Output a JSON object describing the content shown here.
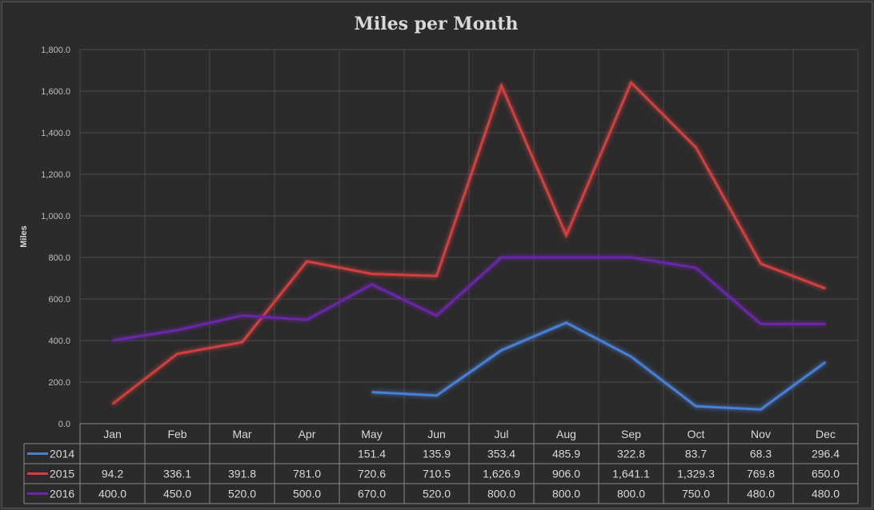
{
  "chart_data": {
    "type": "line",
    "title": "Miles per Month",
    "xlabel": "",
    "ylabel": "Miles",
    "ylim": [
      0,
      1800
    ],
    "yticks": [
      "0.0",
      "200.0",
      "400.0",
      "600.0",
      "800.0",
      "1,000.0",
      "1,200.0",
      "1,400.0",
      "1,600.0",
      "1,800.0"
    ],
    "grid": true,
    "legend": "data-table",
    "categories": [
      "Jan",
      "Feb",
      "Mar",
      "Apr",
      "May",
      "Jun",
      "Jul",
      "Aug",
      "Sep",
      "Oct",
      "Nov",
      "Dec"
    ],
    "series": [
      {
        "name": "2014",
        "color": "#4a7fd4",
        "values": [
          null,
          null,
          null,
          null,
          151.4,
          135.9,
          353.4,
          485.9,
          322.8,
          83.7,
          68.3,
          296.4
        ],
        "labels": [
          "",
          "",
          "",
          "",
          "151.4",
          "135.9",
          "353.4",
          "485.9",
          "322.8",
          "83.7",
          "68.3",
          "296.4"
        ]
      },
      {
        "name": "2015",
        "color": "#d04040",
        "values": [
          94.2,
          336.1,
          391.8,
          781.0,
          720.6,
          710.5,
          1626.9,
          906.0,
          1641.1,
          1329.3,
          769.8,
          650.0
        ],
        "labels": [
          "94.2",
          "336.1",
          "391.8",
          "781.0",
          "720.6",
          "710.5",
          "1,626.9",
          "906.0",
          "1,641.1",
          "1,329.3",
          "769.8",
          "650.0"
        ]
      },
      {
        "name": "2016",
        "color": "#6a28a8",
        "values": [
          400.0,
          450.0,
          520.0,
          500.0,
          670.0,
          520.0,
          800.0,
          800.0,
          800.0,
          750.0,
          480.0,
          480.0
        ],
        "labels": [
          "400.0",
          "450.0",
          "520.0",
          "500.0",
          "670.0",
          "520.0",
          "800.0",
          "800.0",
          "800.0",
          "750.0",
          "480.0",
          "480.0"
        ]
      }
    ]
  }
}
